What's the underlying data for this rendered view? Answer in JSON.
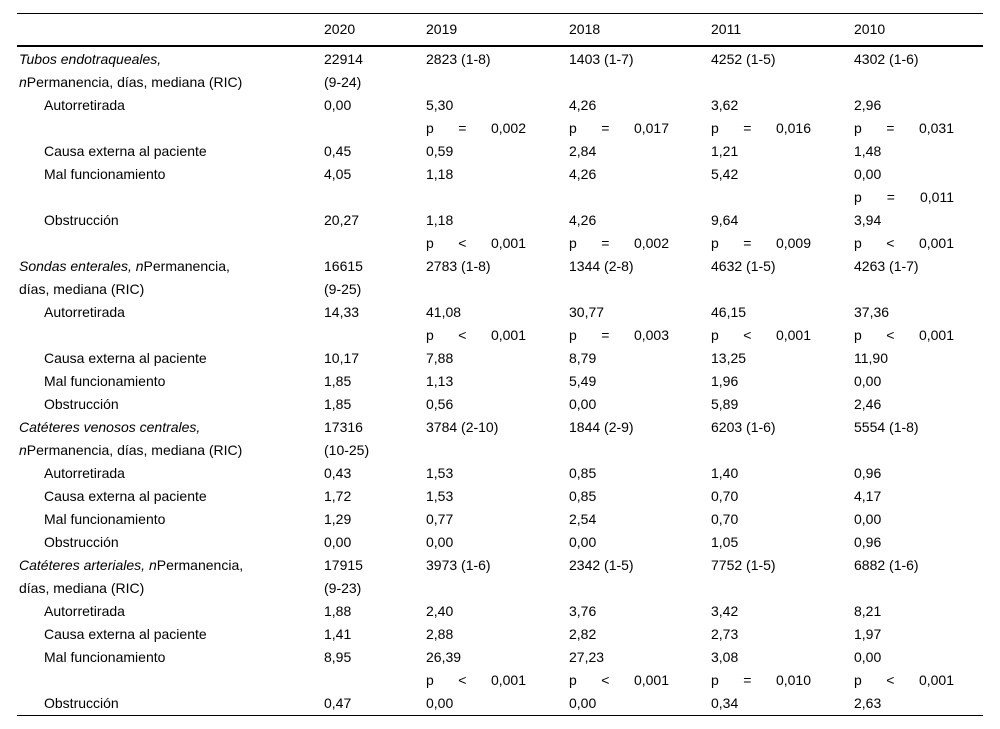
{
  "colors": {
    "text": "#000000",
    "background": "#ffffff",
    "rule": "#000000"
  },
  "table": {
    "p_label": "p",
    "columns": [
      "",
      "2020",
      "2019",
      "2018",
      "2011",
      "2010"
    ],
    "sections": [
      {
        "label": {
          "lines": [
            {
              "i": "Tubos endotraqueales,",
              "r": ""
            },
            {
              "i": "n",
              "r": "Permanencia, días, mediana (RIC)"
            }
          ]
        },
        "n_values": [
          "22914\n(9-24)",
          "2823 (1-8)",
          "1403 (1-7)",
          "4252 (1-5)",
          "4302 (1-6)"
        ],
        "rows": [
          {
            "type": "item",
            "label": "Autorretirada",
            "values": [
              "0,00",
              "5,30",
              "4,26",
              "3,62",
              "2,96"
            ]
          },
          {
            "type": "p",
            "cells": [
              null,
              {
                "op": "=",
                "val": "0,002"
              },
              {
                "op": "=",
                "val": "0,017"
              },
              {
                "op": "=",
                "val": "0,016"
              },
              {
                "op": "=",
                "val": "0,031"
              }
            ]
          },
          {
            "type": "item",
            "label": "Causa externa al paciente",
            "values": [
              "0,45",
              "0,59",
              "2,84",
              "1,21",
              "1,48"
            ]
          },
          {
            "type": "item",
            "label": "Mal funcionamiento",
            "values": [
              "4,05",
              "1,18",
              "4,26",
              "5,42",
              "0,00"
            ]
          },
          {
            "type": "p",
            "cells": [
              null,
              null,
              null,
              null,
              {
                "op": "=",
                "val": "0,011"
              }
            ]
          },
          {
            "type": "item",
            "label": "Obstrucción",
            "values": [
              "20,27",
              "1,18",
              "4,26",
              "9,64",
              "3,94"
            ]
          },
          {
            "type": "p",
            "cells": [
              null,
              {
                "op": "<",
                "val": "0,001"
              },
              {
                "op": "=",
                "val": "0,002"
              },
              {
                "op": "=",
                "val": "0,009"
              },
              {
                "op": "<",
                "val": "0,001"
              }
            ]
          }
        ]
      },
      {
        "label": {
          "lines": [
            {
              "i": "Sondas enterales, n",
              "r": "Permanencia,"
            },
            {
              "i": "",
              "r": "días, mediana (RIC)"
            }
          ]
        },
        "n_values": [
          "16615\n(9-25)",
          "2783 (1-8)",
          "1344 (2-8)",
          "4632 (1-5)",
          "4263 (1-7)"
        ],
        "rows": [
          {
            "type": "item",
            "label": "Autorretirada",
            "values": [
              "14,33",
              "41,08",
              "30,77",
              "46,15",
              "37,36"
            ]
          },
          {
            "type": "p",
            "cells": [
              null,
              {
                "op": "<",
                "val": "0,001"
              },
              {
                "op": "=",
                "val": "0,003"
              },
              {
                "op": "<",
                "val": "0,001"
              },
              {
                "op": "<",
                "val": "0,001"
              }
            ]
          },
          {
            "type": "item",
            "label": "Causa externa al paciente",
            "values": [
              "10,17",
              "7,88",
              "8,79",
              "13,25",
              "11,90"
            ]
          },
          {
            "type": "item",
            "label": "Mal funcionamiento",
            "values": [
              "1,85",
              "1,13",
              "5,49",
              "1,96",
              "0,00"
            ]
          },
          {
            "type": "item",
            "label": "Obstrucción",
            "values": [
              "1,85",
              "0,56",
              "0,00",
              "5,89",
              "2,46"
            ]
          }
        ]
      },
      {
        "label": {
          "lines": [
            {
              "i": "Catéteres venosos centrales,",
              "r": ""
            },
            {
              "i": "n",
              "r": "Permanencia, días, mediana (RIC)"
            }
          ]
        },
        "n_values": [
          "17316\n(10-25)",
          "3784 (2-10)",
          "1844 (2-9)",
          "6203 (1-6)",
          "5554 (1-8)"
        ],
        "rows": [
          {
            "type": "item",
            "label": "Autorretirada",
            "values": [
              "0,43",
              "1,53",
              "0,85",
              "1,40",
              "0,96"
            ]
          },
          {
            "type": "item",
            "label": "Causa externa al paciente",
            "values": [
              "1,72",
              "1,53",
              "0,85",
              "0,70",
              "4,17"
            ]
          },
          {
            "type": "item",
            "label": "Mal funcionamiento",
            "values": [
              "1,29",
              "0,77",
              "2,54",
              "0,70",
              "0,00"
            ]
          },
          {
            "type": "item",
            "label": "Obstrucción",
            "values": [
              "0,00",
              "0,00",
              "0,00",
              "1,05",
              "0,96"
            ]
          }
        ]
      },
      {
        "label": {
          "lines": [
            {
              "i": "Catéteres arteriales, n",
              "r": "Permanencia,"
            },
            {
              "i": "",
              "r": "días, mediana (RIC)"
            }
          ]
        },
        "n_values": [
          "17915\n(9-23)",
          "3973 (1-6)",
          "2342 (1-5)",
          "7752 (1-5)",
          "6882 (1-6)"
        ],
        "rows": [
          {
            "type": "item",
            "label": "Autorretirada",
            "values": [
              "1,88",
              "2,40",
              "3,76",
              "3,42",
              "8,21"
            ]
          },
          {
            "type": "item",
            "label": "Causa externa al paciente",
            "values": [
              "1,41",
              "2,88",
              "2,82",
              "2,73",
              "1,97"
            ]
          },
          {
            "type": "item",
            "label": "Mal funcionamiento",
            "values": [
              "8,95",
              "26,39",
              "27,23",
              "3,08",
              "0,00"
            ]
          },
          {
            "type": "p",
            "cells": [
              null,
              {
                "op": "<",
                "val": "0,001"
              },
              {
                "op": "<",
                "val": "0,001"
              },
              {
                "op": "=",
                "val": "0,010"
              },
              {
                "op": "<",
                "val": "0,001"
              }
            ]
          },
          {
            "type": "item",
            "label": "Obstrucción",
            "values": [
              "0,47",
              "0,00",
              "0,00",
              "0,34",
              "2,63"
            ]
          }
        ]
      }
    ]
  }
}
